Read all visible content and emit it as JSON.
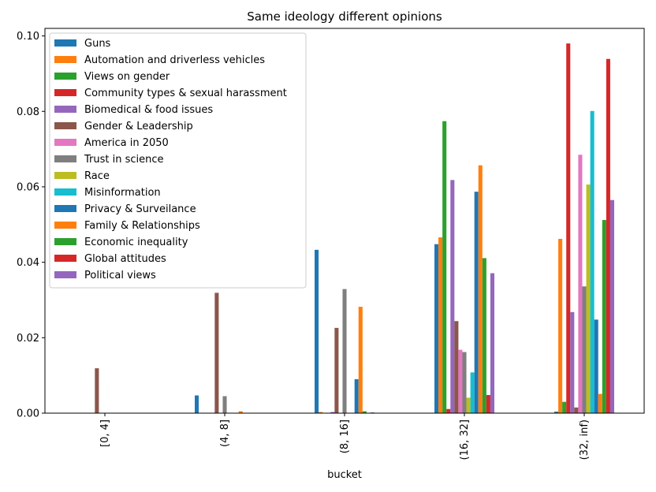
{
  "chart_data": {
    "type": "bar",
    "title": "Same ideology different opinions",
    "xlabel": "bucket",
    "ylabel": "",
    "categories": [
      "[0, 4]",
      "(4, 8]",
      "(8, 16]",
      "(16, 32]",
      "(32, inf)"
    ],
    "ylim": [
      0,
      0.102
    ],
    "yticks": [
      "0.00",
      "0.02",
      "0.04",
      "0.06",
      "0.08",
      "0.10"
    ],
    "legend_position": "top-left",
    "series": [
      {
        "name": "Guns",
        "color": "#1f77b4",
        "values": [
          0,
          0.0047,
          0.0433,
          0.0448,
          0.0004
        ]
      },
      {
        "name": "Automation and driverless vehicles",
        "color": "#ff7f0e",
        "values": [
          0,
          0,
          0.0003,
          0.0466,
          0.0462
        ]
      },
      {
        "name": "Views on gender",
        "color": "#2ca02c",
        "values": [
          0,
          0,
          0,
          0.0774,
          0.003
        ]
      },
      {
        "name": "Community types & sexual harassment",
        "color": "#d62728",
        "values": [
          0,
          0,
          0,
          0.0011,
          0.098
        ]
      },
      {
        "name": "Biomedical & food issues",
        "color": "#9467bd",
        "values": [
          0,
          0,
          0.0003,
          0.0618,
          0.0268
        ]
      },
      {
        "name": "Gender & Leadership",
        "color": "#8c564b",
        "values": [
          0.0119,
          0.0319,
          0.0226,
          0.0244,
          0.0015
        ]
      },
      {
        "name": "America in 2050",
        "color": "#e377c2",
        "values": [
          0,
          0,
          0,
          0.0168,
          0.0685
        ]
      },
      {
        "name": "Trust in science",
        "color": "#7f7f7f",
        "values": [
          0,
          0.0045,
          0.0329,
          0.0162,
          0.0336
        ]
      },
      {
        "name": "Race",
        "color": "#bcbd22",
        "values": [
          0,
          0,
          0,
          0.0041,
          0.0606
        ]
      },
      {
        "name": "Misinformation",
        "color": "#17becf",
        "values": [
          0,
          0,
          0,
          0.0108,
          0.0801
        ]
      },
      {
        "name": "Privacy & Surveilance",
        "color": "#1f77b4",
        "values": [
          0,
          0,
          0.009,
          0.0587,
          0.0248
        ]
      },
      {
        "name": "Family & Relationships",
        "color": "#ff7f0e",
        "values": [
          0,
          0.0005,
          0.0282,
          0.0657,
          0.0051
        ]
      },
      {
        "name": "Economic inequality",
        "color": "#2ca02c",
        "values": [
          0,
          0,
          0.0005,
          0.0411,
          0.0512
        ]
      },
      {
        "name": "Global attitudes",
        "color": "#d62728",
        "values": [
          0,
          0,
          0,
          0.0048,
          0.0939
        ]
      },
      {
        "name": "Political views",
        "color": "#9467bd",
        "values": [
          0,
          0,
          0.0002,
          0.0371,
          0.0565
        ]
      }
    ]
  }
}
